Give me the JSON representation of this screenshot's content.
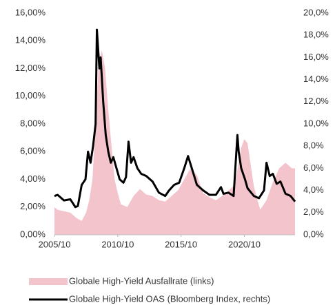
{
  "chart_data": {
    "type": "area_line",
    "xlim": [
      2005.75,
      2024.75
    ],
    "xticks": [
      {
        "value": 2005.75,
        "label": "2005/10"
      },
      {
        "value": 2010.75,
        "label": "2010/10"
      },
      {
        "value": 2015.75,
        "label": "2015/10"
      },
      {
        "value": 2020.75,
        "label": "2020/10"
      }
    ],
    "ylim": [
      0,
      16
    ],
    "yticks": [
      {
        "value": 0,
        "label": "0,00%"
      },
      {
        "value": 2,
        "label": "2,00%"
      },
      {
        "value": 4,
        "label": "4,00%"
      },
      {
        "value": 6,
        "label": "6,00%"
      },
      {
        "value": 8,
        "label": "8,00%"
      },
      {
        "value": 10,
        "label": "10,00%"
      },
      {
        "value": 12,
        "label": "12,00%"
      },
      {
        "value": 14,
        "label": "14,00%"
      },
      {
        "value": 16,
        "label": "16,00%"
      }
    ],
    "y2lim": [
      0,
      20
    ],
    "y2ticks": [
      {
        "value": 0,
        "label": "0,0%"
      },
      {
        "value": 2,
        "label": "2,0%"
      },
      {
        "value": 4,
        "label": "4,0%"
      },
      {
        "value": 6,
        "label": "6,0%"
      },
      {
        "value": 8,
        "label": "8,0%"
      },
      {
        "value": 10,
        "label": "10,0%"
      },
      {
        "value": 12,
        "label": "12,0%"
      },
      {
        "value": 14,
        "label": "14,0%"
      },
      {
        "value": 16,
        "label": "16,0%"
      },
      {
        "value": 18,
        "label": "18,0%"
      },
      {
        "value": 20,
        "label": "20,0%"
      }
    ],
    "series": [
      {
        "name": "Globale High-Yield Ausfallrate (links)",
        "kind": "area",
        "color": "#f4c4cd",
        "x": [
          2005.75,
          2006.0,
          2006.5,
          2007.0,
          2007.5,
          2007.9,
          2008.25,
          2008.5,
          2008.75,
          2009.0,
          2009.25,
          2009.5,
          2009.75,
          2010.0,
          2010.25,
          2010.5,
          2010.75,
          2011.0,
          2011.5,
          2012.0,
          2012.5,
          2013.0,
          2013.5,
          2014.0,
          2014.5,
          2015.0,
          2015.5,
          2016.0,
          2016.5,
          2017.0,
          2017.5,
          2018.0,
          2018.5,
          2019.0,
          2019.5,
          2020.0,
          2020.5,
          2020.75,
          2021.0,
          2021.5,
          2022.0,
          2022.5,
          2023.0,
          2023.5,
          2024.0,
          2024.5,
          2024.75
        ],
        "values": [
          2.0,
          1.8,
          1.7,
          1.6,
          1.2,
          1.0,
          1.6,
          2.5,
          4.0,
          8.0,
          12.5,
          13.3,
          12.0,
          9.0,
          6.5,
          4.0,
          3.0,
          2.2,
          2.0,
          2.8,
          3.3,
          2.9,
          2.8,
          2.5,
          2.4,
          2.8,
          3.2,
          4.0,
          4.8,
          4.3,
          3.0,
          2.7,
          2.5,
          2.8,
          3.2,
          3.6,
          6.3,
          6.9,
          6.6,
          3.5,
          1.8,
          2.5,
          3.8,
          4.8,
          5.2,
          4.8,
          4.8
        ]
      },
      {
        "name": "Globale High-Yield OAS (Bloomberg Index, rechts)",
        "kind": "line",
        "axis": "y2",
        "color": "#000000",
        "x": [
          2005.75,
          2006.0,
          2006.5,
          2007.0,
          2007.4,
          2007.6,
          2007.9,
          2008.2,
          2008.4,
          2008.6,
          2008.8,
          2009.0,
          2009.1,
          2009.3,
          2009.4,
          2009.6,
          2009.8,
          2010.0,
          2010.2,
          2010.4,
          2010.6,
          2010.9,
          2011.2,
          2011.4,
          2011.6,
          2011.8,
          2012.0,
          2012.3,
          2012.6,
          2013.0,
          2013.5,
          2014.0,
          2014.5,
          2014.8,
          2015.2,
          2015.6,
          2016.0,
          2016.3,
          2016.6,
          2017.0,
          2017.5,
          2018.0,
          2018.5,
          2018.9,
          2019.1,
          2019.5,
          2019.9,
          2020.2,
          2020.3,
          2020.5,
          2020.8,
          2021.0,
          2021.5,
          2021.9,
          2022.3,
          2022.5,
          2022.75,
          2023.0,
          2023.3,
          2023.6,
          2024.0,
          2024.4,
          2024.75
        ],
        "values": [
          3.5,
          3.6,
          3.1,
          3.2,
          2.5,
          2.6,
          4.5,
          5.0,
          7.5,
          6.5,
          8.0,
          10.0,
          18.5,
          15.0,
          16.0,
          12.0,
          9.0,
          7.5,
          6.5,
          7.0,
          6.2,
          5.0,
          4.7,
          5.2,
          8.4,
          6.5,
          7.0,
          6.0,
          5.5,
          5.3,
          4.8,
          3.8,
          3.5,
          4.0,
          4.5,
          4.7,
          6.0,
          7.1,
          6.0,
          4.5,
          4.0,
          3.6,
          3.6,
          4.3,
          3.7,
          3.8,
          3.5,
          9.0,
          7.5,
          6.0,
          5.0,
          4.2,
          3.5,
          3.3,
          4.0,
          6.5,
          5.3,
          5.5,
          4.6,
          4.8,
          3.7,
          3.5,
          3.0
        ]
      }
    ]
  }
}
